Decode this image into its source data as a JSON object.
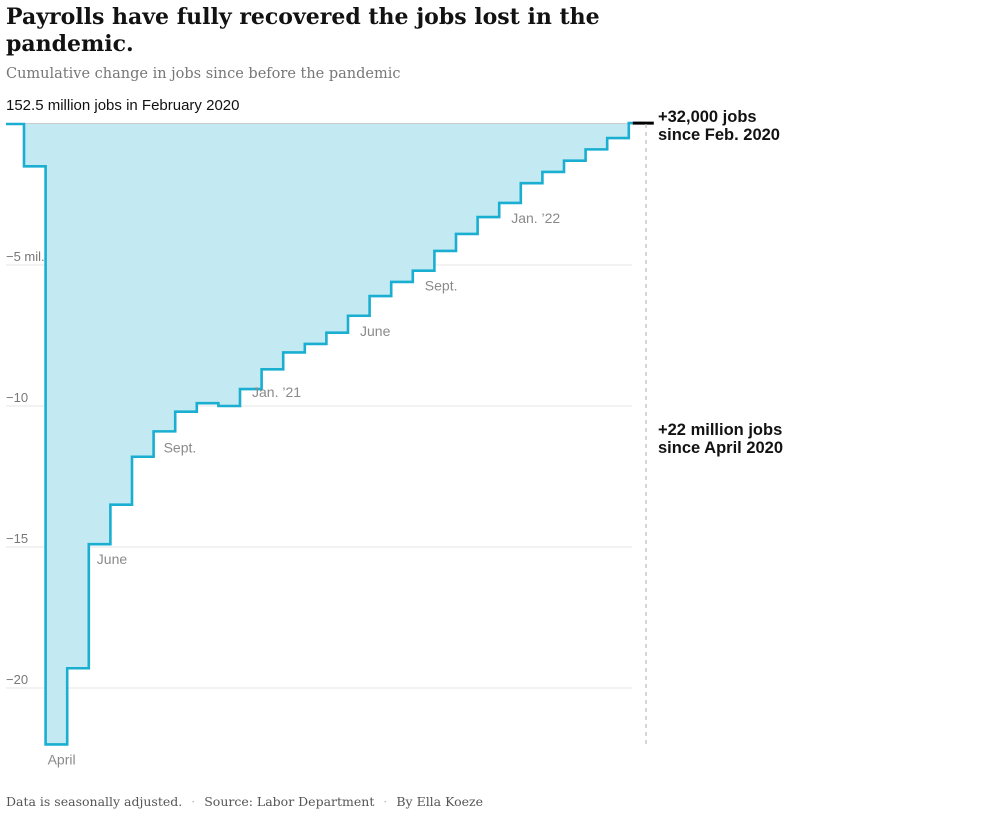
{
  "header": {
    "title": "Payrolls have fully recovered the jobs lost in the pandemic.",
    "subtitle": "Cumulative change in jobs since before the pandemic"
  },
  "footer": {
    "note": "Data is seasonally adjusted.",
    "source": "Source: Labor Department",
    "byline": "By Ella Koeze"
  },
  "colors": {
    "line": "#1aaed0",
    "area": "#c3e9f3",
    "baseline": "#9a9a9a",
    "grid": "#e6e6e6",
    "marker": "#000000"
  },
  "chart_data": {
    "type": "area",
    "title": "Payrolls have fully recovered the jobs lost in the pandemic.",
    "subtitle": "Cumulative change in jobs since before the pandemic",
    "xlabel": "",
    "ylabel": "",
    "y_unit": "million jobs",
    "ylim": [
      -22.3,
      0.2
    ],
    "y_ticks": [
      {
        "value": -5,
        "label": "−5 mil."
      },
      {
        "value": -10,
        "label": "−10"
      },
      {
        "value": -15,
        "label": "−15"
      },
      {
        "value": -20,
        "label": "−20"
      }
    ],
    "grid": true,
    "baseline_label": "152.5 million jobs in February 2020",
    "series": [
      {
        "x": [
          "2020-02",
          "2020-03",
          "2020-04",
          "2020-05",
          "2020-06",
          "2020-07",
          "2020-08",
          "2020-09",
          "2020-10",
          "2020-11",
          "2020-12",
          "2021-01",
          "2021-02",
          "2021-03",
          "2021-04",
          "2021-05",
          "2021-06",
          "2021-07",
          "2021-08",
          "2021-09",
          "2021-10",
          "2021-11",
          "2021-12",
          "2022-01",
          "2022-02",
          "2022-03",
          "2022-04",
          "2022-05",
          "2022-06",
          "2022-07"
        ],
        "values": [
          0.0,
          -1.5,
          -22.0,
          -19.3,
          -14.9,
          -13.5,
          -11.8,
          -10.9,
          -10.2,
          -9.9,
          -10.0,
          -9.4,
          -8.7,
          -8.1,
          -7.8,
          -7.4,
          -6.8,
          -6.1,
          -5.6,
          -5.2,
          -4.5,
          -3.9,
          -3.3,
          -2.8,
          -2.1,
          -1.7,
          -1.3,
          -0.9,
          -0.5,
          0.032
        ]
      }
    ],
    "month_labels": [
      {
        "x": "2020-04",
        "label": "April"
      },
      {
        "x": "2020-06",
        "label": "June"
      },
      {
        "x": "2020-09",
        "label": "Sept."
      },
      {
        "x": "2021-01",
        "label": "Jan. ’21"
      },
      {
        "x": "2021-06",
        "label": "June"
      },
      {
        "x": "2021-09",
        "label": "Sept."
      },
      {
        "x": "2022-01",
        "label": "Jan. ’22"
      }
    ],
    "annotations": [
      {
        "lines": [
          "+32,000 jobs",
          "since Feb. 2020"
        ]
      },
      {
        "lines": [
          "+22 million jobs",
          "since April 2020"
        ]
      }
    ]
  }
}
